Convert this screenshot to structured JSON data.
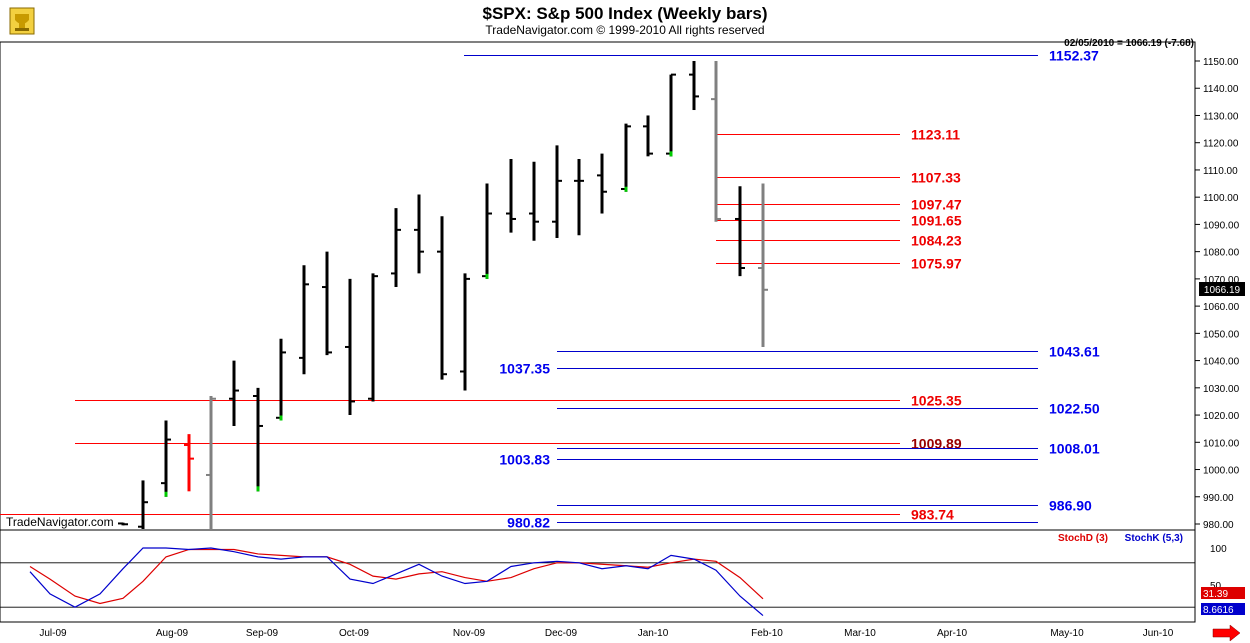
{
  "header": {
    "title": "$SPX:  S&p 500 Index  (Weekly bars)",
    "subtitle": "TradeNavigator.com © 1999-2010 All rights reserved",
    "status": "02/05/2010 = 1066.19 (-7.68)",
    "watermark": "TradeNavigator.com",
    "last_price": "1066.19"
  },
  "colors": {
    "bar": "#000000",
    "bar_gray": "#808080",
    "bar_red": "#ff0000",
    "bar_green_tick": "#00cc00",
    "level_red": "#ff0000",
    "level_blue": "#0000cc",
    "level_label_red": "#ee0000",
    "level_label_darkred": "#990000",
    "level_label_blue": "#0000ee",
    "stoch_d": "#dd0000",
    "stoch_k": "#0000cc"
  },
  "chart_data": {
    "type": "ohlc",
    "y_ticks": [
      980,
      990,
      1000,
      1010,
      1020,
      1030,
      1040,
      1050,
      1060,
      1070,
      1080,
      1090,
      1100,
      1110,
      1120,
      1130,
      1140,
      1150
    ],
    "y_tick_labels": [
      "980.00",
      "990.00",
      "1000.00",
      "1010.00",
      "1020.00",
      "1030.00",
      "1040.00",
      "1050.00",
      "1060.00",
      "1070.00",
      "1080.00",
      "1090.00",
      "1100.00",
      "1110.00",
      "1120.00",
      "1130.00",
      "1140.00",
      "1150.00"
    ],
    "y_range": [
      978,
      1158
    ],
    "x_labels": [
      "Jul-09",
      "Aug-09",
      "Sep-09",
      "Oct-09",
      "Nov-09",
      "Dec-09",
      "Jan-10",
      "Feb-10",
      "Mar-10",
      "Apr-10",
      "May-10",
      "Jun-10"
    ],
    "bars": [
      {
        "x": 123,
        "o": 980.2,
        "h": 980.5,
        "l": 979.5,
        "c": 979.9,
        "color": "black"
      },
      {
        "x": 143,
        "o": 979,
        "h": 996,
        "l": 978,
        "c": 988,
        "color": "black"
      },
      {
        "x": 166,
        "o": 995,
        "h": 1018,
        "l": 990,
        "c": 1011,
        "color": "black",
        "tick": "close"
      },
      {
        "x": 189,
        "o": 1009,
        "h": 1013,
        "l": 992,
        "c": 1004,
        "color": "red"
      },
      {
        "x": 211,
        "o": 998,
        "h": 1027,
        "l": 978,
        "c": 1026,
        "color": "gray"
      },
      {
        "x": 234,
        "o": 1026,
        "h": 1040,
        "l": 1016,
        "c": 1029,
        "color": "black"
      },
      {
        "x": 258,
        "o": 1027,
        "h": 1030,
        "l": 992,
        "c": 1016,
        "color": "black",
        "tick": "open"
      },
      {
        "x": 281,
        "o": 1019,
        "h": 1048,
        "l": 1018,
        "c": 1043,
        "color": "black",
        "tick": "open"
      },
      {
        "x": 304,
        "o": 1041,
        "h": 1075,
        "l": 1035,
        "c": 1068,
        "color": "black"
      },
      {
        "x": 327,
        "o": 1067,
        "h": 1080,
        "l": 1042,
        "c": 1043,
        "color": "black"
      },
      {
        "x": 350,
        "o": 1045,
        "h": 1070,
        "l": 1020,
        "c": 1025,
        "color": "black"
      },
      {
        "x": 373,
        "o": 1026,
        "h": 1072,
        "l": 1025,
        "c": 1071,
        "color": "black"
      },
      {
        "x": 396,
        "o": 1072,
        "h": 1096,
        "l": 1067,
        "c": 1088,
        "color": "black"
      },
      {
        "x": 419,
        "o": 1088,
        "h": 1101,
        "l": 1072,
        "c": 1080,
        "color": "black"
      },
      {
        "x": 442,
        "o": 1080,
        "h": 1093,
        "l": 1033,
        "c": 1035,
        "color": "black"
      },
      {
        "x": 465,
        "o": 1036,
        "h": 1072,
        "l": 1029,
        "c": 1070,
        "color": "black"
      },
      {
        "x": 487,
        "o": 1071,
        "h": 1105,
        "l": 1070,
        "c": 1094,
        "color": "black",
        "tick": "open"
      },
      {
        "x": 511,
        "o": 1094,
        "h": 1114,
        "l": 1087,
        "c": 1092,
        "color": "black"
      },
      {
        "x": 534,
        "o": 1094,
        "h": 1113,
        "l": 1084,
        "c": 1091,
        "color": "black"
      },
      {
        "x": 557,
        "o": 1091,
        "h": 1119,
        "l": 1085,
        "c": 1106,
        "color": "black"
      },
      {
        "x": 579,
        "o": 1106,
        "h": 1114,
        "l": 1086,
        "c": 1106,
        "color": "black"
      },
      {
        "x": 602,
        "o": 1108,
        "h": 1116,
        "l": 1094,
        "c": 1102,
        "color": "black"
      },
      {
        "x": 626,
        "o": 1103,
        "h": 1127,
        "l": 1102,
        "c": 1126,
        "color": "black",
        "tick": "open"
      },
      {
        "x": 648,
        "o": 1126,
        "h": 1130,
        "l": 1115,
        "c": 1116,
        "color": "black"
      },
      {
        "x": 671,
        "o": 1116,
        "h": 1145,
        "l": 1115,
        "c": 1145,
        "color": "black",
        "tick": "open"
      },
      {
        "x": 694,
        "o": 1145,
        "h": 1150,
        "l": 1132,
        "c": 1137,
        "color": "black"
      },
      {
        "x": 716,
        "o": 1136,
        "h": 1150,
        "l": 1091,
        "c": 1092,
        "color": "gray"
      },
      {
        "x": 740,
        "o": 1092,
        "h": 1104,
        "l": 1071,
        "c": 1074,
        "color": "black"
      },
      {
        "x": 763,
        "o": 1074,
        "h": 1105,
        "l": 1045,
        "c": 1066,
        "color": "gray"
      }
    ],
    "levels": [
      {
        "value": 1152.37,
        "label": "1152.37",
        "color": "blue",
        "x1": 464,
        "x2": 1038,
        "label_x": 1049,
        "label_anchor": "start"
      },
      {
        "value": 1123.11,
        "label": "1123.11",
        "color": "red",
        "x1": 716,
        "x2": 900,
        "label_x": 911,
        "label_anchor": "start"
      },
      {
        "value": 1107.33,
        "label": "1107.33",
        "color": "red",
        "x1": 716,
        "x2": 900,
        "label_x": 911,
        "label_anchor": "start"
      },
      {
        "value": 1097.47,
        "label": "1097.47",
        "color": "red",
        "x1": 716,
        "x2": 900,
        "label_x": 911,
        "label_anchor": "start"
      },
      {
        "value": 1091.65,
        "label": "1091.65",
        "color": "red",
        "x1": 716,
        "x2": 900,
        "label_x": 911,
        "label_anchor": "start"
      },
      {
        "value": 1084.23,
        "label": "1084.23",
        "color": "red",
        "x1": 716,
        "x2": 900,
        "label_x": 911,
        "label_anchor": "start"
      },
      {
        "value": 1075.97,
        "label": "1075.97",
        "color": "red",
        "x1": 716,
        "x2": 900,
        "label_x": 911,
        "label_anchor": "start"
      },
      {
        "value": 1043.61,
        "label": "1043.61",
        "color": "blue",
        "x1": 557,
        "x2": 1038,
        "label_x": 1049,
        "label_anchor": "start"
      },
      {
        "value": 1037.35,
        "label": "1037.35",
        "color": "blue",
        "x1": 557,
        "x2": 1038,
        "label_x": 550,
        "label_anchor": "end"
      },
      {
        "value": 1025.35,
        "label": "1025.35",
        "color": "red",
        "x1": 75,
        "x2": 900,
        "label_x": 911,
        "label_anchor": "start"
      },
      {
        "value": 1022.5,
        "label": "1022.50",
        "color": "blue",
        "x1": 557,
        "x2": 1038,
        "label_x": 1049,
        "label_anchor": "start"
      },
      {
        "value": 1009.89,
        "label": "1009.89",
        "color": "red",
        "x1": 75,
        "x2": 900,
        "label_x": 911,
        "label_anchor": "start",
        "dark": true
      },
      {
        "value": 1008.01,
        "label": "1008.01",
        "color": "blue",
        "x1": 557,
        "x2": 1038,
        "label_x": 1049,
        "label_anchor": "start"
      },
      {
        "value": 1003.83,
        "label": "1003.83",
        "color": "blue",
        "x1": 557,
        "x2": 1038,
        "label_x": 550,
        "label_anchor": "end"
      },
      {
        "value": 986.9,
        "label": "986.90",
        "color": "blue",
        "x1": 557,
        "x2": 1038,
        "label_x": 1049,
        "label_anchor": "start"
      },
      {
        "value": 983.74,
        "label": "983.74",
        "color": "red",
        "x1": 0,
        "x2": 900,
        "label_x": 911,
        "label_anchor": "start"
      },
      {
        "value": 980.82,
        "label": "980.82",
        "color": "blue",
        "x1": 557,
        "x2": 1038,
        "label_x": 550,
        "label_anchor": "end"
      }
    ],
    "stochastic": {
      "legend_d": "StochD (3)",
      "legend_k": "StochK (5,3)",
      "y_ticks": [
        100,
        50
      ],
      "ref_levels": [
        80,
        20
      ],
      "k_value_label": "8.6616",
      "d_value_label": "31.39",
      "x": [
        30,
        50,
        75,
        100,
        123,
        143,
        166,
        189,
        211,
        234,
        258,
        281,
        304,
        327,
        350,
        373,
        396,
        419,
        442,
        465,
        487,
        511,
        534,
        557,
        579,
        602,
        626,
        648,
        671,
        694,
        716,
        740,
        763
      ],
      "k": [
        68,
        38,
        20,
        38,
        72,
        100,
        100,
        98,
        100,
        95,
        88,
        85,
        88,
        88,
        58,
        52,
        65,
        78,
        62,
        52,
        55,
        75,
        80,
        82,
        80,
        72,
        76,
        72,
        90,
        85,
        70,
        35,
        8.66
      ],
      "d": [
        75,
        58,
        35,
        25,
        32,
        55,
        88,
        98,
        98,
        98,
        92,
        90,
        88,
        88,
        78,
        62,
        58,
        65,
        68,
        60,
        55,
        60,
        72,
        80,
        80,
        78,
        76,
        74,
        80,
        85,
        82,
        60,
        31.39
      ]
    }
  }
}
